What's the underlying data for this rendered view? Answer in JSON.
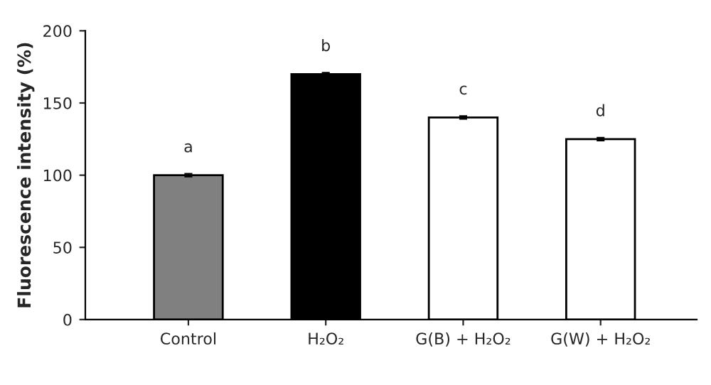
{
  "chart_data": {
    "type": "bar",
    "ylabel": "Fluorescence intensity (%)",
    "categories": [
      "Control",
      "H₂O₂",
      "G(B) + H₂O₂",
      "G(W) + H₂O₂"
    ],
    "values": [
      100,
      170,
      140,
      125
    ],
    "errors": [
      1,
      1,
      1,
      1
    ],
    "colors": [
      "#808080",
      "#000000",
      "#ffffff",
      "#ffffff"
    ],
    "ylim": [
      0,
      200
    ],
    "yticks": [
      0,
      50,
      100,
      150,
      200
    ],
    "grid": false,
    "legend": false,
    "annotations": [
      {
        "text": "a",
        "x": "Control",
        "y": 100
      },
      {
        "text": "b",
        "x": "H₂O₂",
        "y": 170
      },
      {
        "text": "c",
        "x": "G(B) + H₂O₂",
        "y": 140
      },
      {
        "text": "d",
        "x": "G(W) + H₂O₂",
        "y": 125
      }
    ]
  }
}
